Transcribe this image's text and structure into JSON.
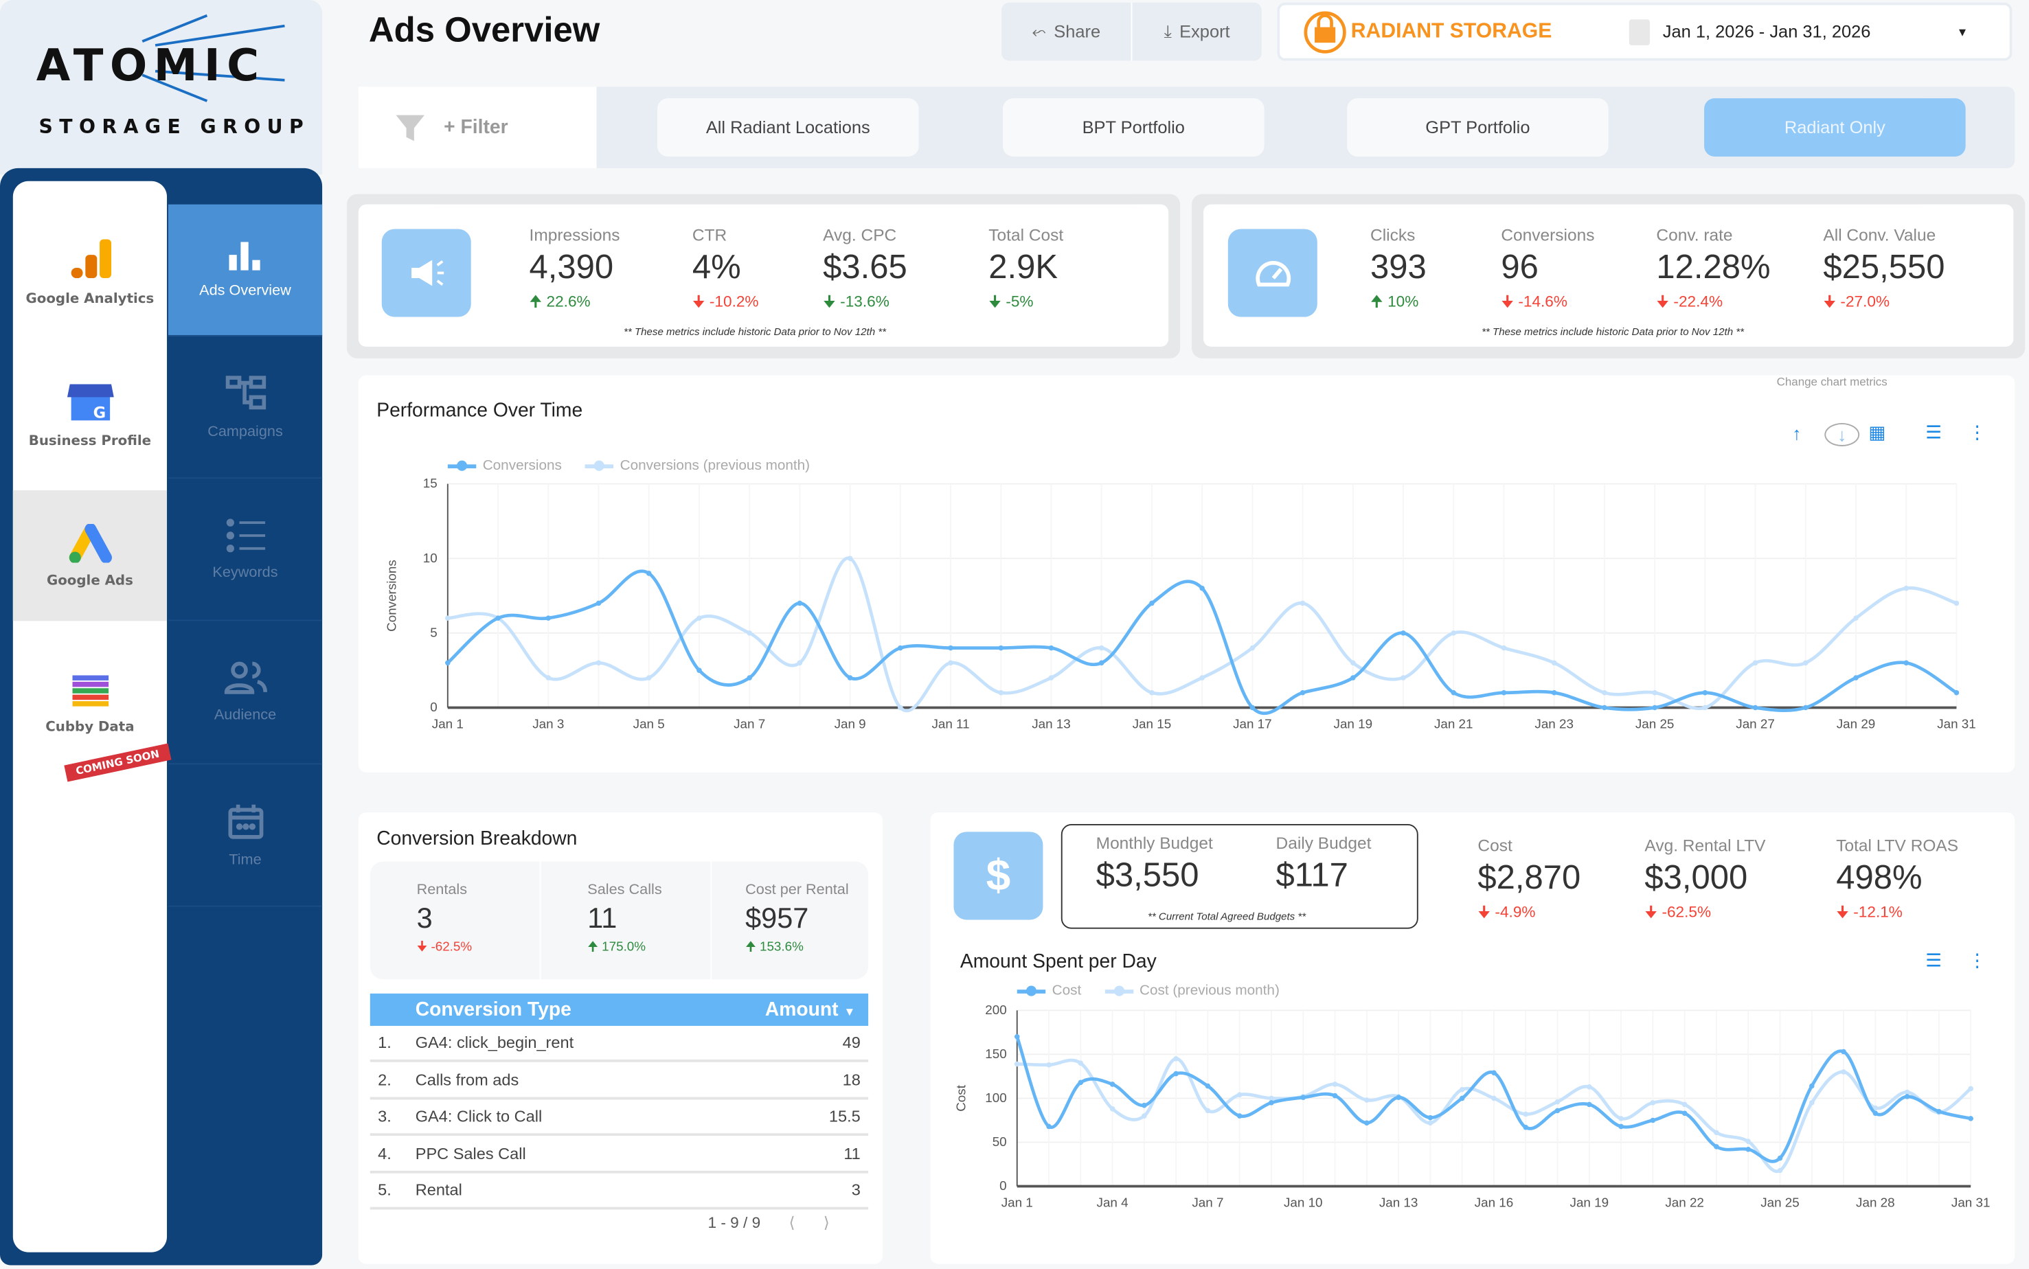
{
  "logo": {
    "line1": "ATOMIC",
    "line2": "STORAGE GROUP"
  },
  "left_nav": [
    {
      "label": "Google Analytics",
      "icon": "google-analytics-icon"
    },
    {
      "label": "Business Profile",
      "icon": "business-profile-icon"
    },
    {
      "label": "Google Ads",
      "icon": "google-ads-icon",
      "selected": true
    },
    {
      "label": "Cubby Data",
      "icon": "cubby-data-icon",
      "badge": "COMING SOON"
    }
  ],
  "right_nav": [
    {
      "label": "Ads Overview",
      "icon": "bar-chart-icon",
      "active": true
    },
    {
      "label": "Campaigns",
      "icon": "hierarchy-icon"
    },
    {
      "label": "Keywords",
      "icon": "list-icon"
    },
    {
      "label": "Audience",
      "icon": "people-icon"
    },
    {
      "label": "Time",
      "icon": "calendar-icon"
    }
  ],
  "header": {
    "title": "Ads Overview",
    "share": "Share",
    "export": "Export",
    "brand": "RADIANT STORAGE",
    "date_range": "Jan 1, 2026 - Jan 31, 2026"
  },
  "filters": {
    "filter_label": "+ Filter",
    "buttons": [
      "All Radiant Locations",
      "BPT Portfolio",
      "GPT Portfolio",
      "Radiant Only"
    ],
    "active": "Radiant Only"
  },
  "kpi1": {
    "metrics": [
      {
        "label": "Impressions",
        "value": "4,390",
        "change": "22.6%",
        "dir": "up",
        "good": true
      },
      {
        "label": "CTR",
        "value": "4%",
        "change": "-10.2%",
        "dir": "down",
        "good": false
      },
      {
        "label": "Avg. CPC",
        "value": "$3.65",
        "change": "-13.6%",
        "dir": "down",
        "good": true
      },
      {
        "label": "Total Cost",
        "value": "2.9K",
        "change": "-5%",
        "dir": "down",
        "good": true
      }
    ],
    "note": "** These metrics include historic Data prior to Nov 12th **"
  },
  "kpi2": {
    "metrics": [
      {
        "label": "Clicks",
        "value": "393",
        "change": "10%",
        "dir": "up",
        "good": true
      },
      {
        "label": "Conversions",
        "value": "96",
        "change": "-14.6%",
        "dir": "down",
        "good": false
      },
      {
        "label": "Conv. rate",
        "value": "12.28%",
        "change": "-22.4%",
        "dir": "down",
        "good": false
      },
      {
        "label": "All Conv. Value",
        "value": "$25,550",
        "change": "-27.0%",
        "dir": "down",
        "good": false
      }
    ],
    "note": "** These metrics include historic Data prior to Nov 12th **"
  },
  "performance": {
    "title": "Performance Over Time",
    "hint": "Change chart metrics"
  },
  "conversion_breakdown": {
    "title": "Conversion Breakdown",
    "stats": [
      {
        "label": "Rentals",
        "value": "3",
        "change": "-62.5%",
        "dir": "down",
        "good": false
      },
      {
        "label": "Sales Calls",
        "value": "11",
        "change": "175.0%",
        "dir": "up",
        "good": true
      },
      {
        "label": "Cost per Rental",
        "value": "$957",
        "change": "153.6%",
        "dir": "up",
        "good": true
      }
    ],
    "table": {
      "headers": [
        "Conversion Type",
        "Amount"
      ],
      "rows": [
        {
          "n": "1.",
          "type": "GA4: click_begin_rent",
          "amount": "49"
        },
        {
          "n": "2.",
          "type": "Calls from ads",
          "amount": "18"
        },
        {
          "n": "3.",
          "type": "GA4: Click to Call",
          "amount": "15.5"
        },
        {
          "n": "4.",
          "type": "PPC Sales Call",
          "amount": "11"
        },
        {
          "n": "5.",
          "type": "Rental",
          "amount": "3"
        }
      ],
      "pagination": "1 - 9 / 9"
    }
  },
  "budget": {
    "monthly_label": "Monthly Budget",
    "monthly": "$3,550",
    "daily_label": "Daily Budget",
    "daily": "$117",
    "note": "** Current Total Agreed Budgets **",
    "metrics": [
      {
        "label": "Cost",
        "value": "$2,870",
        "change": "-4.9%",
        "dir": "down",
        "good": false
      },
      {
        "label": "Avg. Rental LTV",
        "value": "$3,000",
        "change": "-62.5%",
        "dir": "down",
        "good": false
      },
      {
        "label": "Total LTV ROAS",
        "value": "498%",
        "change": "-12.1%",
        "dir": "down",
        "good": false
      }
    ]
  },
  "spend": {
    "title": "Amount Spent per Day"
  },
  "colors": {
    "primary": "#64b5f6",
    "previous": "#c5e1fb",
    "navy": "#0f4278",
    "active_nav": "#4a90d4",
    "brand": "#f7931e",
    "up": "#2e8b3e",
    "down": "#f44336"
  },
  "chart_data": [
    {
      "type": "line",
      "ylabel": "Conversions",
      "ylim": [
        0,
        15
      ],
      "yticks": [
        0,
        5,
        10,
        15
      ],
      "x": [
        "Jan 1",
        "Jan 2",
        "Jan 3",
        "Jan 4",
        "Jan 5",
        "Jan 6",
        "Jan 7",
        "Jan 8",
        "Jan 9",
        "Jan 10",
        "Jan 11",
        "Jan 12",
        "Jan 13",
        "Jan 14",
        "Jan 15",
        "Jan 16",
        "Jan 17",
        "Jan 18",
        "Jan 19",
        "Jan 20",
        "Jan 21",
        "Jan 22",
        "Jan 23",
        "Jan 24",
        "Jan 25",
        "Jan 26",
        "Jan 27",
        "Jan 28",
        "Jan 29",
        "Jan 30",
        "Jan 31"
      ],
      "xticks": [
        "Jan 1",
        "Jan 3",
        "Jan 5",
        "Jan 7",
        "Jan 9",
        "Jan 11",
        "Jan 13",
        "Jan 15",
        "Jan 17",
        "Jan 19",
        "Jan 21",
        "Jan 23",
        "Jan 25",
        "Jan 27",
        "Jan 29",
        "Jan 31"
      ],
      "legend": "top-left",
      "series": [
        {
          "name": "Conversions",
          "values": [
            3,
            6,
            6,
            7,
            9,
            2.5,
            2,
            7,
            2,
            4,
            4,
            4,
            4,
            3,
            7,
            8,
            0,
            1,
            2,
            5,
            1,
            1,
            1,
            0,
            0,
            1,
            0,
            0,
            2,
            3,
            1
          ]
        },
        {
          "name": "Conversions (previous month)",
          "values": [
            6,
            6,
            2,
            3,
            2,
            6,
            5,
            3,
            10,
            0,
            3,
            1,
            2,
            4,
            1,
            2,
            4,
            7,
            3,
            2,
            5,
            4,
            3,
            1,
            1,
            0,
            3,
            3,
            6,
            8,
            7
          ]
        }
      ]
    },
    {
      "type": "line",
      "ylabel": "Cost",
      "ylim": [
        0,
        200
      ],
      "yticks": [
        0,
        50,
        100,
        150,
        200
      ],
      "x": [
        "Jan 1",
        "Jan 2",
        "Jan 3",
        "Jan 4",
        "Jan 5",
        "Jan 6",
        "Jan 7",
        "Jan 8",
        "Jan 9",
        "Jan 10",
        "Jan 11",
        "Jan 12",
        "Jan 13",
        "Jan 14",
        "Jan 15",
        "Jan 16",
        "Jan 17",
        "Jan 18",
        "Jan 19",
        "Jan 20",
        "Jan 21",
        "Jan 22",
        "Jan 23",
        "Jan 24",
        "Jan 25",
        "Jan 26",
        "Jan 27",
        "Jan 28",
        "Jan 29",
        "Jan 30",
        "Jan 31"
      ],
      "xticks": [
        "Jan 1",
        "Jan 4",
        "Jan 7",
        "Jan 10",
        "Jan 13",
        "Jan 16",
        "Jan 19",
        "Jan 22",
        "Jan 25",
        "Jan 28",
        "Jan 31"
      ],
      "legend": "top-left",
      "series": [
        {
          "name": "Cost",
          "values": [
            170,
            68,
            118,
            116,
            92,
            128,
            114,
            80,
            95,
            101,
            103,
            72,
            101,
            78,
            100,
            129,
            67,
            86,
            93,
            68,
            75,
            83,
            45,
            42,
            32,
            114,
            153,
            83,
            102,
            85,
            77
          ]
        },
        {
          "name": "Cost (previous month)",
          "values": [
            139,
            138,
            140,
            88,
            80,
            145,
            86,
            104,
            100,
            102,
            116,
            98,
            102,
            72,
            110,
            100,
            82,
            96,
            113,
            77,
            95,
            93,
            61,
            51,
            18,
            95,
            130,
            89,
            107,
            84,
            111
          ]
        }
      ]
    }
  ]
}
